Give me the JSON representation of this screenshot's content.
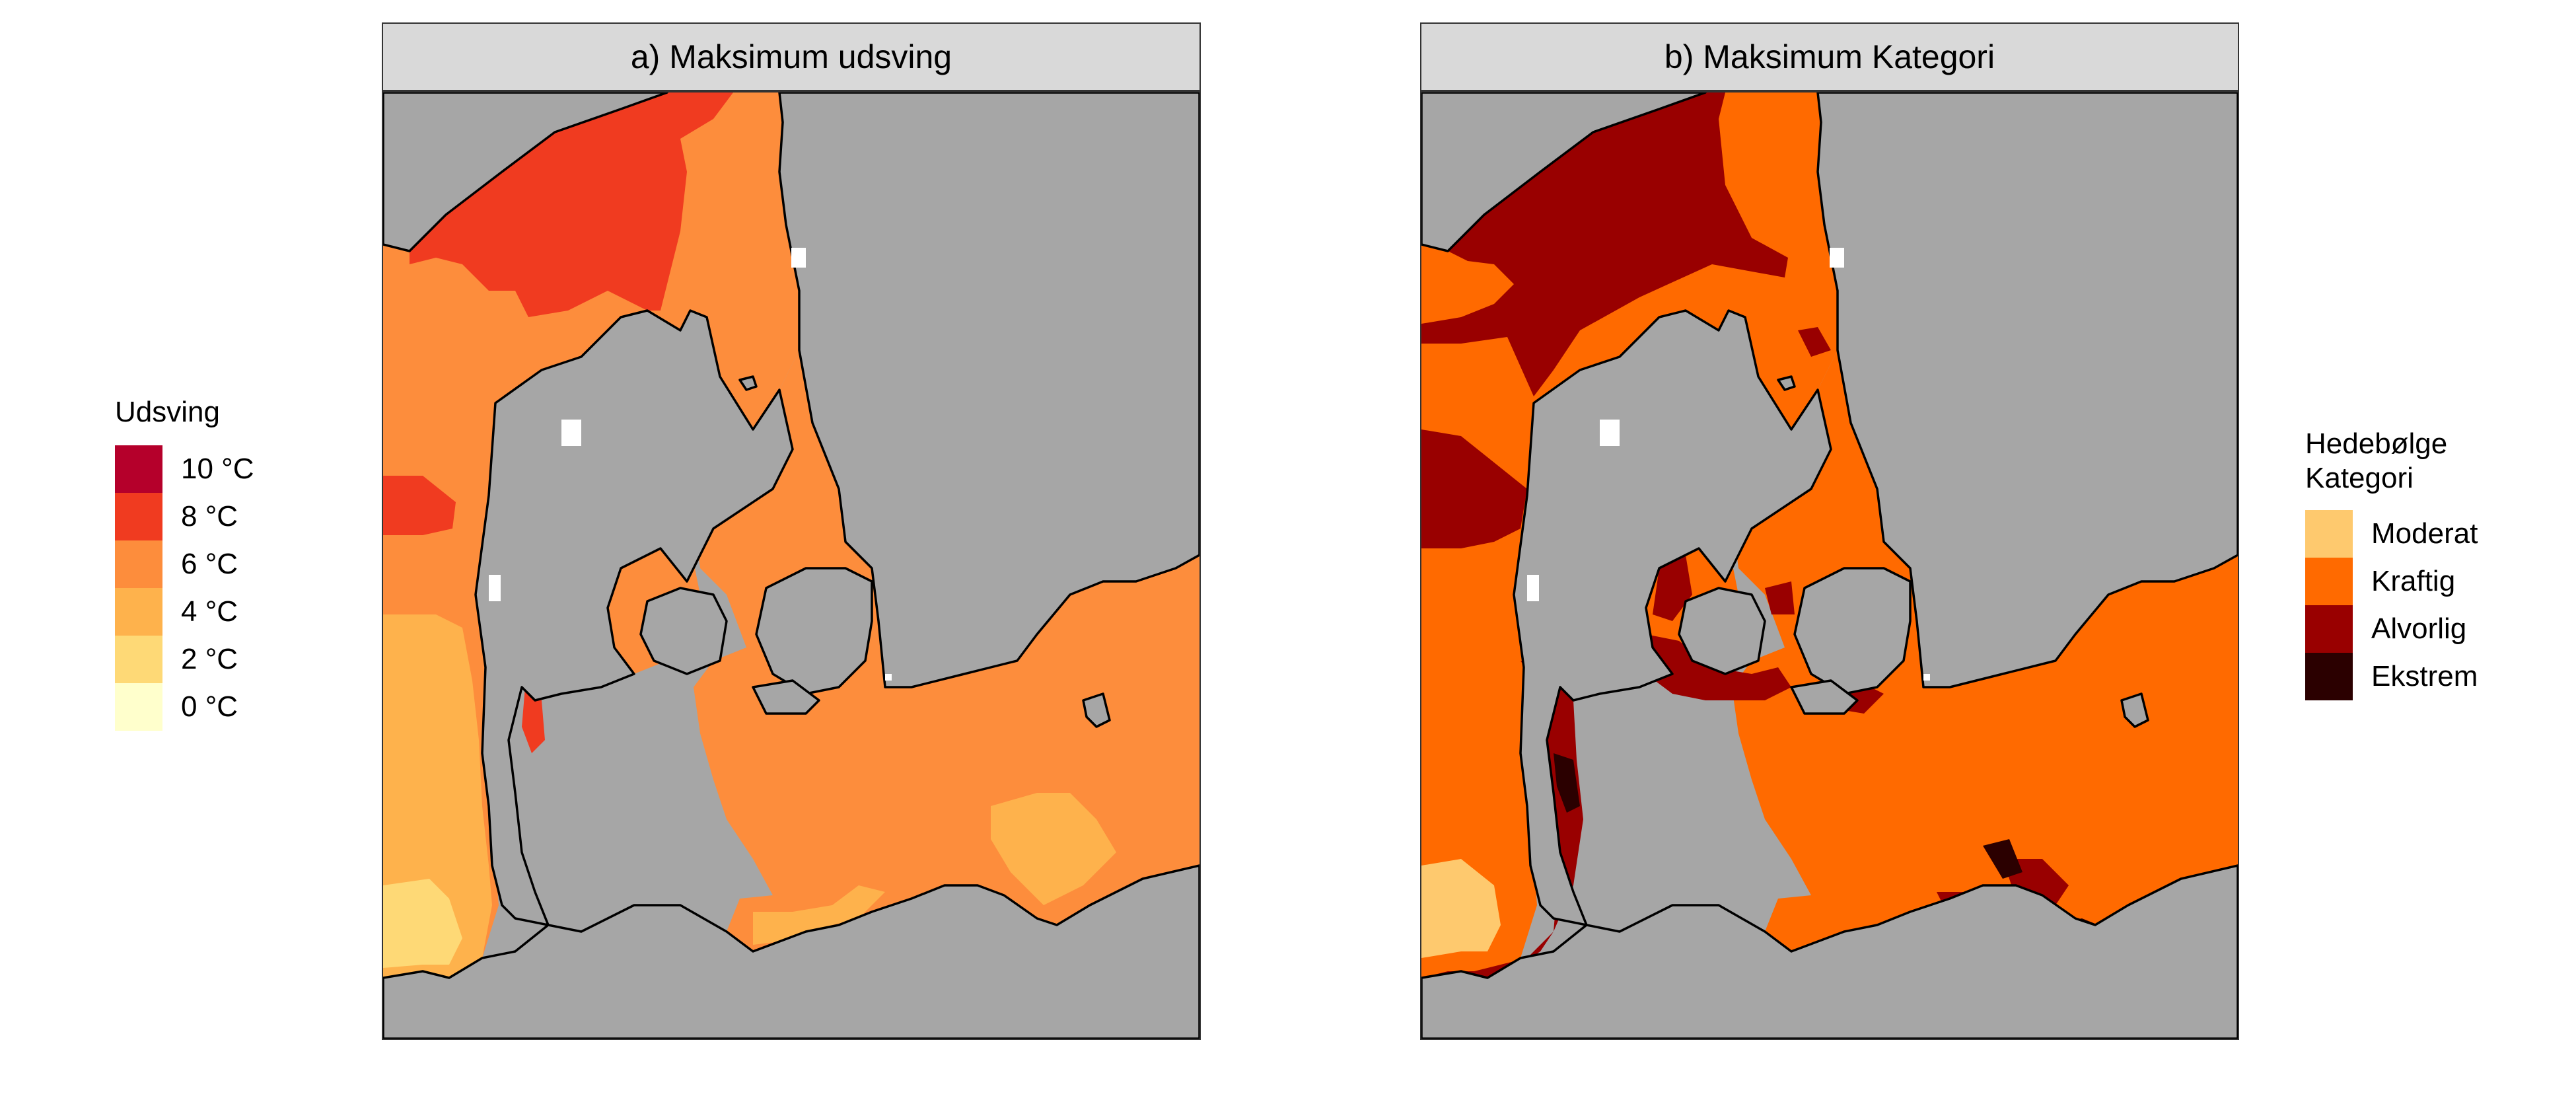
{
  "panels": [
    {
      "title": "a) Maksimum udsving"
    },
    {
      "title": "b) Maksimum Kategori"
    }
  ],
  "legend_udsving": {
    "title": "Udsving",
    "items": [
      {
        "label": "10 °C",
        "color": "#b5002b"
      },
      {
        "label": "8 °C",
        "color": "#f03b20"
      },
      {
        "label": "6 °C",
        "color": "#fd8d3c"
      },
      {
        "label": "4 °C",
        "color": "#feb24c"
      },
      {
        "label": "2 °C",
        "color": "#fed976"
      },
      {
        "label": "0 °C",
        "color": "#ffffcc"
      }
    ]
  },
  "legend_kategori": {
    "title": "Hedebølge\nKategori",
    "items": [
      {
        "label": "Moderat",
        "color": "#fec96e"
      },
      {
        "label": "Kraftig",
        "color": "#ff6a00"
      },
      {
        "label": "Alvorlig",
        "color": "#990000"
      },
      {
        "label": "Ekstrem",
        "color": "#2b0000"
      }
    ]
  },
  "map_colors": {
    "land": "#a6a6a6",
    "coastline": "#000000",
    "no_data": "#ffffff"
  }
}
